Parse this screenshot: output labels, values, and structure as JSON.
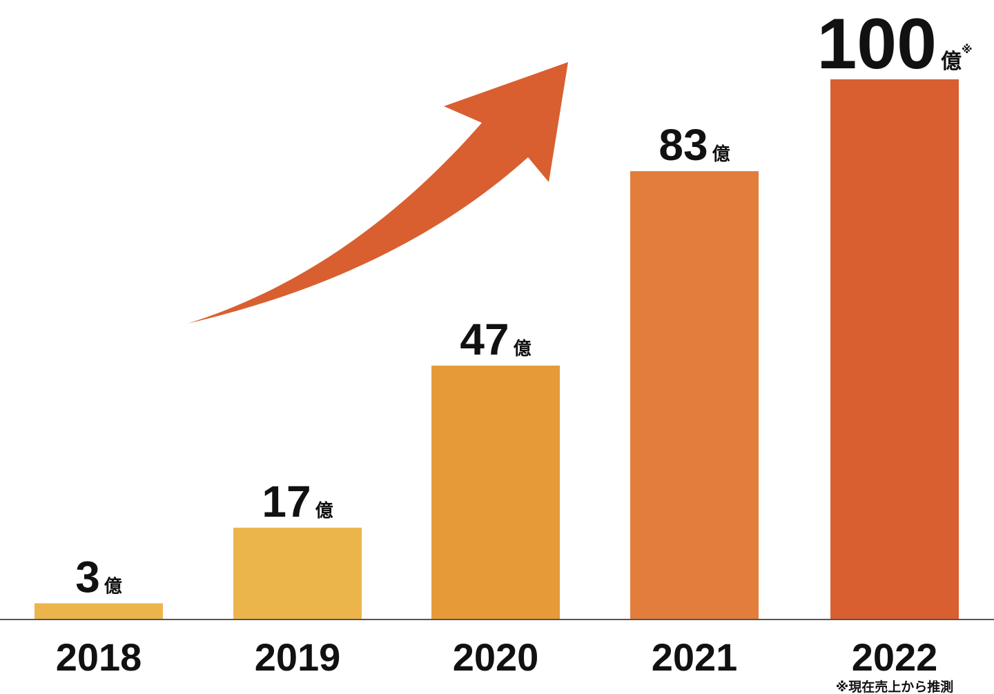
{
  "chart_data": {
    "type": "bar",
    "categories": [
      "2018",
      "2019",
      "2020",
      "2021",
      "2022"
    ],
    "values": [
      3,
      17,
      47,
      83,
      100
    ],
    "value_labels": [
      "3",
      "17",
      "47",
      "83",
      "100"
    ],
    "unit": "億",
    "value_marks": [
      "",
      "",
      "",
      "",
      "※"
    ],
    "category_notes": [
      "",
      "",
      "",
      "",
      "※現在売上から推測"
    ],
    "colors": [
      "#ecb54c",
      "#ecb54c",
      "#e69a38",
      "#e27d3c",
      "#d95f30"
    ],
    "arrow_color": "#d95f30",
    "axis_color": "#555555",
    "ylim": [
      0,
      100
    ],
    "grid": false,
    "title": "",
    "xlabel": "",
    "ylabel": ""
  }
}
